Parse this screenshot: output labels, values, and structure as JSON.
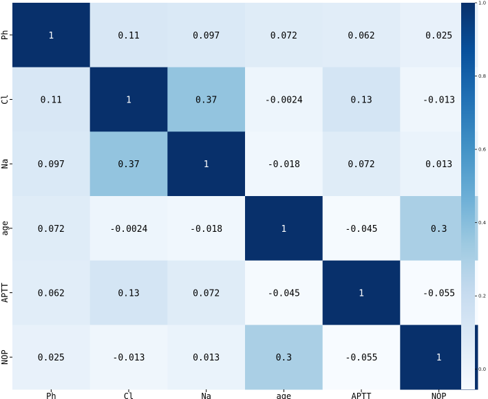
{
  "chart_data": {
    "type": "heatmap",
    "title": "",
    "xlabel": "",
    "ylabel": "",
    "x_labels": [
      "Ph",
      "Cl",
      "Na",
      "age",
      "APTT",
      "NOP"
    ],
    "y_labels": [
      "Ph",
      "Cl",
      "Na",
      "age",
      "APTT",
      "NOP"
    ],
    "values": [
      [
        1,
        0.11,
        0.097,
        0.072,
        0.062,
        0.025
      ],
      [
        0.11,
        1,
        0.37,
        -0.0024,
        0.13,
        -0.013
      ],
      [
        0.097,
        0.37,
        1,
        -0.018,
        0.072,
        0.013
      ],
      [
        0.072,
        -0.0024,
        -0.018,
        1,
        -0.045,
        0.3
      ],
      [
        0.062,
        0.13,
        0.072,
        -0.045,
        1,
        -0.055
      ],
      [
        0.025,
        -0.013,
        0.013,
        0.3,
        -0.055,
        1
      ]
    ],
    "value_labels": [
      [
        "1",
        "0.11",
        "0.097",
        "0.072",
        "0.062",
        "0.025"
      ],
      [
        "0.11",
        "1",
        "0.37",
        "-0.0024",
        "0.13",
        "-0.013"
      ],
      [
        "0.097",
        "0.37",
        "1",
        "-0.018",
        "0.072",
        "0.013"
      ],
      [
        "0.072",
        "-0.0024",
        "-0.018",
        "1",
        "-0.045",
        "0.3"
      ],
      [
        "0.062",
        "0.13",
        "0.072",
        "-0.045",
        "1",
        "-0.055"
      ],
      [
        "0.025",
        "-0.013",
        "0.013",
        "0.3",
        "-0.055",
        "1"
      ]
    ],
    "colormap": "Blues",
    "vmin": -0.055,
    "vmax": 1,
    "colorbar": {
      "ticks": [
        0.0,
        0.2,
        0.4,
        0.6,
        0.8,
        1.0
      ],
      "tick_labels": [
        "0.0",
        "0.2",
        "0.4",
        "0.6",
        "0.8",
        "1.0"
      ]
    },
    "annot_color_light": "#000000",
    "annot_color_dark": "#ffffff",
    "grid": false,
    "legend": "colorbar-right"
  }
}
